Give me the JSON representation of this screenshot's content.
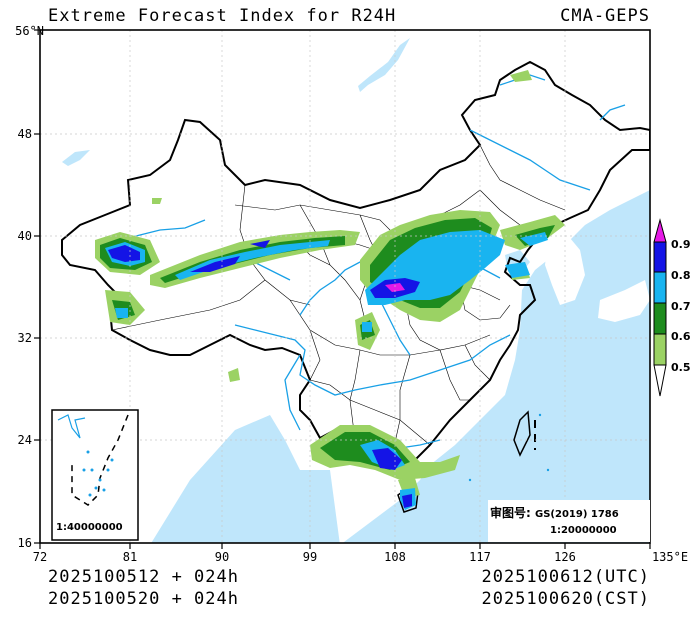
{
  "header": {
    "title": "Extreme Forecast Index for R24H",
    "org": "CMA-GEPS"
  },
  "axes": {
    "x_ticks": [
      "72",
      "81",
      "90",
      "99",
      "108",
      "117",
      "126",
      "135°E"
    ],
    "y_ticks": [
      "56°N",
      "48",
      "40",
      "32",
      "24",
      "16"
    ]
  },
  "legend": {
    "levels": [
      "0.9",
      "0.8",
      "0.7",
      "0.6",
      "0.5"
    ],
    "colors": [
      "#e619e6",
      "#1414e6",
      "#19b4f0",
      "#1e8c1e",
      "#9bd264"
    ]
  },
  "approval": {
    "label": "审图号:",
    "number": "GS(2019) 1786",
    "scale": "1:20000000"
  },
  "inset": {
    "scale": "1:40000000"
  },
  "footer": {
    "init_utc": "2025100512 + 024h",
    "init_cst": "2025100520 + 024h",
    "valid_utc": "2025100612(UTC)",
    "valid_cst": "2025100620(CST)"
  },
  "colors": {
    "water": "#a8dcf8",
    "river": "#19a0e6",
    "border": "#000000"
  }
}
